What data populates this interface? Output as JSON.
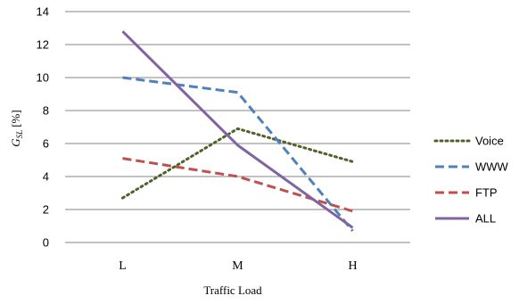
{
  "chart_data": {
    "type": "line",
    "title": "",
    "xlabel": "Traffic Load",
    "ylabel_main": "G",
    "ylabel_sub": "SL",
    "ylabel_unit": "[%]",
    "categories": [
      "L",
      "M",
      "H"
    ],
    "ylim": [
      0,
      14
    ],
    "yticks": [
      "0",
      "2",
      "4",
      "6",
      "8",
      "10",
      "12",
      "14"
    ],
    "grid": true,
    "legend_position": "right",
    "series": [
      {
        "name": "Voice",
        "values": [
          2.7,
          6.9,
          4.9
        ],
        "color": "#4F6228",
        "dash": "dotted"
      },
      {
        "name": "WWW",
        "values": [
          10.0,
          9.1,
          0.7
        ],
        "color": "#4F81BD",
        "dash": "dashed"
      },
      {
        "name": "FTP",
        "values": [
          5.1,
          4.0,
          1.9
        ],
        "color": "#C0504D",
        "dash": "dashed"
      },
      {
        "name": "ALL",
        "values": [
          12.8,
          5.9,
          0.9
        ],
        "color": "#8064A2",
        "dash": "solid"
      }
    ]
  }
}
